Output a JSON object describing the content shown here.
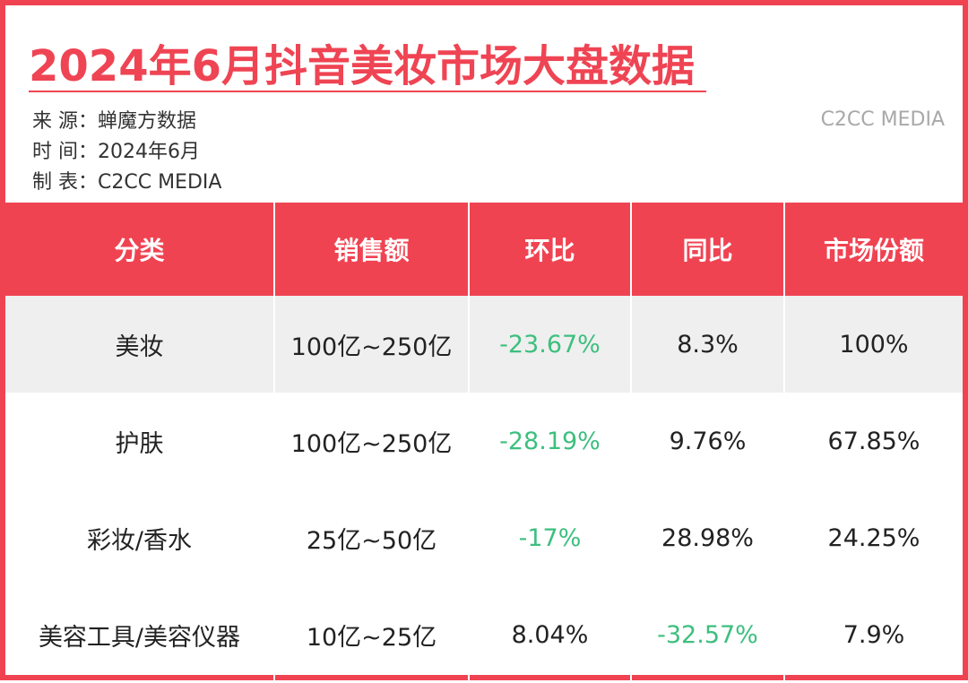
{
  "title": "2024年6月抖音美妆市场大盘数据",
  "meta": [
    {
      "label": "来  源：",
      "value": "蝉魔方数据"
    },
    {
      "label": "时  间：",
      "value": "2024年6月"
    },
    {
      "label": "制  表：",
      "value": "C2CC  MEDIA"
    }
  ],
  "watermark": "C2CC MEDIA",
  "colors": {
    "accent": "#f04352",
    "negative": "#3cbf7e",
    "row_shade": "#efefef"
  },
  "table": {
    "headers": [
      "分类",
      "销售额",
      "环比",
      "同比",
      "市场份额"
    ],
    "rows": [
      {
        "category": "美妆",
        "sales": "100亿~250亿",
        "mom": "-23.67%",
        "yoy": "8.3%",
        "share": "100%"
      },
      {
        "category": "护肤",
        "sales": "100亿~250亿",
        "mom": "-28.19%",
        "yoy": "9.76%",
        "share": "67.85%"
      },
      {
        "category": "彩妆/香水",
        "sales": "25亿~50亿",
        "mom": "-17%",
        "yoy": "28.98%",
        "share": "24.25%"
      },
      {
        "category": "美容工具/美容仪器",
        "sales": "10亿~25亿",
        "mom": "8.04%",
        "yoy": "-32.57%",
        "share": "7.9%"
      }
    ]
  }
}
